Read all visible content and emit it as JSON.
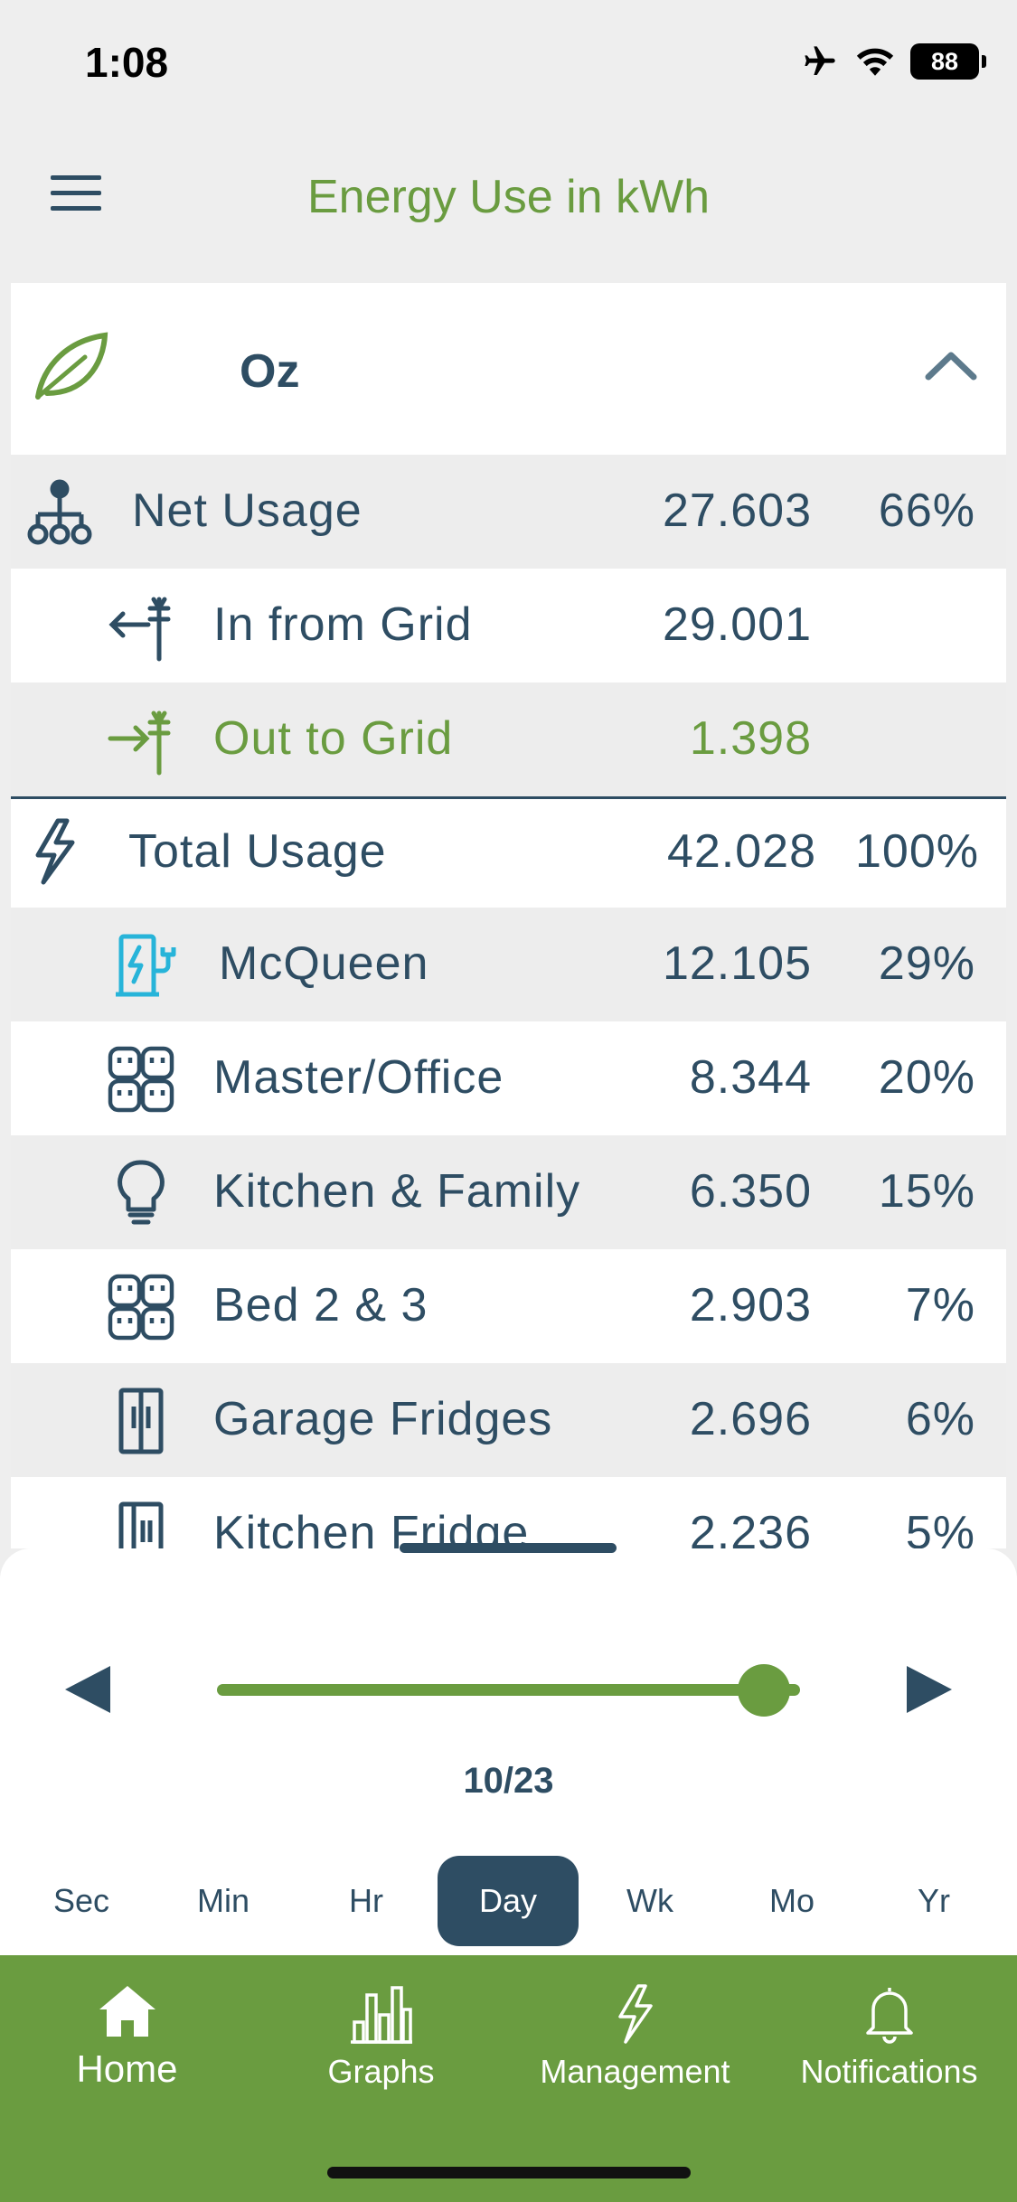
{
  "status": {
    "time": "1:08",
    "battery": "88"
  },
  "header": {
    "title": "Energy Use in kWh"
  },
  "site": {
    "name": "Oz"
  },
  "rows": [
    {
      "label": "Net Usage",
      "value": "27.603",
      "pct": "66%"
    },
    {
      "label": "In from Grid",
      "value": "29.001",
      "pct": ""
    },
    {
      "label": "Out to Grid",
      "value": "1.398",
      "pct": ""
    },
    {
      "label": "Total Usage",
      "value": "42.028",
      "pct": "100%"
    },
    {
      "label": "McQueen",
      "value": "12.105",
      "pct": "29%"
    },
    {
      "label": "Master/Office",
      "value": "8.344",
      "pct": "20%"
    },
    {
      "label": "Kitchen & Family",
      "value": "6.350",
      "pct": "15%"
    },
    {
      "label": "Bed 2 & 3",
      "value": "2.903",
      "pct": "7%"
    },
    {
      "label": "Garage Fridges",
      "value": "2.696",
      "pct": "6%"
    },
    {
      "label": "Kitchen Fridge",
      "value": "2.236",
      "pct": "5%"
    }
  ],
  "controls": {
    "date": "10/23",
    "periods": [
      "Sec",
      "Min",
      "Hr",
      "Day",
      "Wk",
      "Mo",
      "Yr"
    ],
    "active_period": "Day"
  },
  "tabs": [
    {
      "label": "Home",
      "icon": "home-icon"
    },
    {
      "label": "Graphs",
      "icon": "graphs-icon"
    },
    {
      "label": "Management",
      "icon": "lightning-icon"
    },
    {
      "label": "Notifications",
      "icon": "bell-icon"
    }
  ],
  "colors": {
    "accent": "#6a9c40",
    "primary": "#2e4d63",
    "ev": "#27b4d9"
  }
}
